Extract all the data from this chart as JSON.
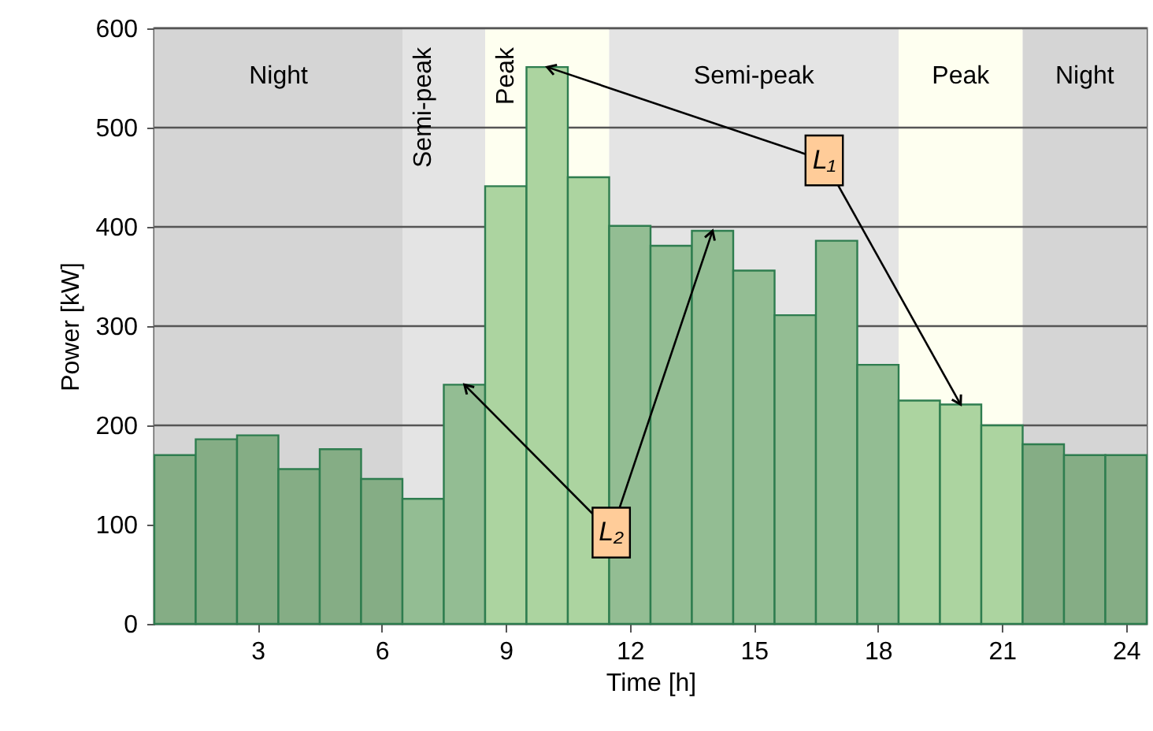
{
  "chart_data": {
    "type": "bar",
    "xlabel": "Time [h]",
    "ylabel": "Power [kW]",
    "x": [
      1,
      2,
      3,
      4,
      5,
      6,
      7,
      8,
      9,
      10,
      11,
      12,
      13,
      14,
      15,
      16,
      17,
      18,
      19,
      20,
      21,
      22,
      23,
      24
    ],
    "values": [
      170,
      186,
      190,
      156,
      176,
      146,
      126,
      241,
      441,
      561,
      450,
      401,
      381,
      396,
      356,
      311,
      386,
      261,
      225,
      221,
      200,
      181,
      170,
      170
    ],
    "colors": [
      "#85ad85",
      "#85ad85",
      "#85ad85",
      "#85ad85",
      "#85ad85",
      "#85ad85",
      "#93bd93",
      "#93bd93",
      "#acd4a0",
      "#acd4a0",
      "#acd4a0",
      "#93bd93",
      "#93bd93",
      "#93bd93",
      "#93bd93",
      "#93bd93",
      "#93bd93",
      "#93bd93",
      "#acd4a0",
      "#acd4a0",
      "#acd4a0",
      "#85ad85",
      "#85ad85",
      "#85ad85"
    ],
    "xlim": [
      0.5,
      24.5
    ],
    "xticks": [
      3,
      6,
      9,
      12,
      15,
      18,
      21,
      24
    ],
    "ylim": [
      0,
      600
    ],
    "yticks": [
      0,
      100,
      200,
      300,
      400,
      500,
      600
    ],
    "grid": "y",
    "bands": [
      {
        "axis": "x",
        "from": 0.5,
        "to": 6.5,
        "label": "Night",
        "color": "#d5d5d5"
      },
      {
        "axis": "x",
        "from": 6.5,
        "to": 8.5,
        "label": "Semi-peak",
        "color": "#e4e4e4"
      },
      {
        "axis": "x",
        "from": 8.5,
        "to": 11.5,
        "label": "Peak",
        "color": "#fefff0"
      },
      {
        "axis": "x",
        "from": 11.5,
        "to": 18.5,
        "label": "Semi-peak",
        "color": "#e4e4e4"
      },
      {
        "axis": "x",
        "from": 18.5,
        "to": 21.5,
        "label": "Peak",
        "color": "#fefff0"
      },
      {
        "axis": "x",
        "from": 21.5,
        "to": 24.5,
        "label": "Night",
        "color": "#d5d5d5"
      }
    ],
    "annotations": [
      {
        "text": "L₁",
        "x": 16.7,
        "y": 467
      },
      {
        "text": "L₂",
        "x": 11.55,
        "y": 92
      }
    ]
  }
}
